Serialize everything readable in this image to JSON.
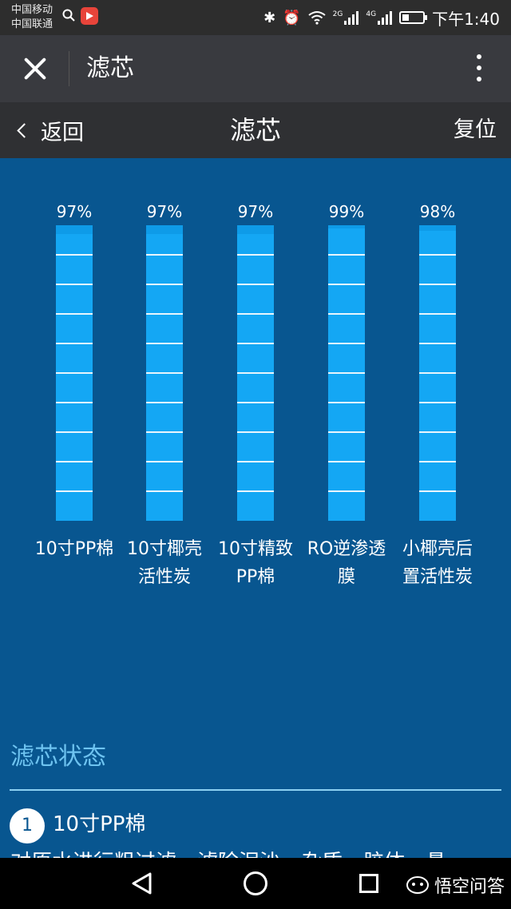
{
  "status_bar": {
    "carrier_1": "中国移动",
    "carrier_2": "中国联通",
    "network_1": "2G",
    "network_2": "4G",
    "time": "下午1:40"
  },
  "titlebar": {
    "title": "滤芯"
  },
  "app_header": {
    "back_label": "返回",
    "title": "滤芯",
    "reset_label": "复位"
  },
  "chart_data": {
    "type": "bar",
    "categories": [
      "10寸PP棉",
      "10寸椰壳活性炭",
      "10寸精致PP棉",
      "RO逆渗透膜",
      "小椰壳后置活性炭"
    ],
    "values": [
      97,
      97,
      97,
      99,
      98
    ],
    "unit": "%",
    "ylim": [
      0,
      100
    ],
    "segments": 10
  },
  "filters": [
    {
      "percent": "97%",
      "name_line1": "10寸PP棉",
      "name_line2": ""
    },
    {
      "percent": "97%",
      "name_line1": "10寸椰壳",
      "name_line2": "活性炭"
    },
    {
      "percent": "97%",
      "name_line1": "10寸精致",
      "name_line2": "PP棉"
    },
    {
      "percent": "99%",
      "name_line1": "RO逆渗透",
      "name_line2": "膜"
    },
    {
      "percent": "98%",
      "name_line1": "小椰壳后",
      "name_line2": "置活性炭"
    }
  ],
  "status_section": {
    "title": "滤芯状态",
    "item": {
      "number": "1",
      "title": "10寸PP棉",
      "description": "对原水进行粗过滤，滤除泥沙、杂质、胶体、悬"
    }
  },
  "watermark": {
    "text": "悟空问答"
  },
  "colors": {
    "background": "#085690",
    "bar": "#14a7f4",
    "section_title": "#6ec3f0"
  }
}
